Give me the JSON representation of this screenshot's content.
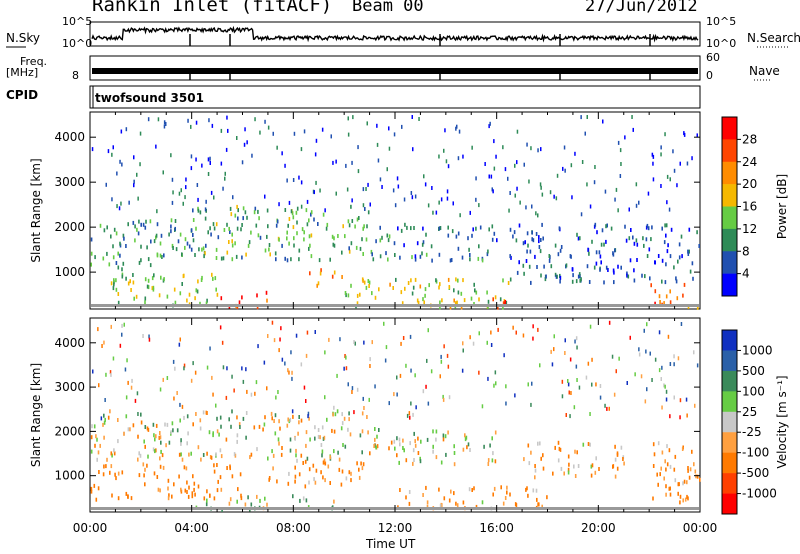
{
  "header": {
    "title": "Rankin Inlet (fitACF)",
    "beam": "Beam 00",
    "date": "27/Jun/2012"
  },
  "status_panel": {
    "nsky_label": "N.Sky",
    "nsky_ticks": [
      "10^5",
      "10^0"
    ],
    "nsearch_label": "N.Search",
    "freq_label": "Freq.",
    "freq_unit": "[MHz]",
    "freq_ticks": [
      "8"
    ],
    "nave_label": "Nave",
    "nave_ticks": [
      "60",
      "0"
    ],
    "cpid_label": "CPID",
    "cpid_value": "twofsound 3501"
  },
  "chart_data": [
    {
      "type": "heatmap",
      "ylabel": "Slant Range [km]",
      "xlabel": "Time UT",
      "xlim": [
        0,
        24
      ],
      "ylim": [
        180,
        4560
      ],
      "yticks": [
        1000,
        2000,
        3000,
        4000
      ],
      "xticks": [
        "00:00",
        "04:00",
        "08:00",
        "12:00",
        "16:00",
        "20:00",
        "00:00"
      ],
      "colorbar": {
        "label": "Power [dB]",
        "ticks": [
          "28",
          "24",
          "20",
          "16",
          "12",
          "8",
          "4"
        ],
        "colors": [
          "#ff0000",
          "#ff4500",
          "#ff8c00",
          "#f5b800",
          "#66cc44",
          "#2e8b57",
          "#2050b0",
          "#0000ff"
        ]
      },
      "regions": [
        {
          "t": [
            0.0,
            4.0
          ],
          "r": [
            1100,
            2200
          ],
          "power": 10
        },
        {
          "t": [
            4.0,
            11.0
          ],
          "r": [
            1300,
            2500
          ],
          "power": 12
        },
        {
          "t": [
            11.0,
            16.0
          ],
          "r": [
            1300,
            2100
          ],
          "power": 8
        },
        {
          "t": [
            16.5,
            24.0
          ],
          "r": [
            800,
            2100
          ],
          "power": 6
        },
        {
          "t": [
            5.0,
            7.0
          ],
          "r": [
            250,
            600
          ],
          "power": 28
        },
        {
          "t": [
            8.5,
            10.0
          ],
          "r": [
            700,
            1100
          ],
          "power": 22
        },
        {
          "t": [
            0.5,
            5.0
          ],
          "r": [
            300,
            1000
          ],
          "power": 14
        },
        {
          "t": [
            10.0,
            16.5
          ],
          "r": [
            250,
            900
          ],
          "power": 16
        },
        {
          "t": [
            15.5,
            16.5
          ],
          "r": [
            250,
            500
          ],
          "power": 26
        },
        {
          "t": [
            22.0,
            24.0
          ],
          "r": [
            250,
            800
          ],
          "power": 24
        }
      ]
    },
    {
      "type": "heatmap",
      "ylabel": "Slant Range [km]",
      "xlabel": "Time UT",
      "xlim": [
        0,
        24
      ],
      "ylim": [
        180,
        4560
      ],
      "yticks": [
        1000,
        2000,
        3000,
        4000
      ],
      "xticks": [
        "00:00",
        "04:00",
        "08:00",
        "12:00",
        "16:00",
        "20:00",
        "00:00"
      ],
      "colorbar": {
        "label": "Velocity [m s⁻¹]",
        "ticks": [
          "1000",
          "500",
          "100",
          "25",
          "-25",
          "-100",
          "-500",
          "-1000"
        ],
        "colors": [
          "#1030c0",
          "#2a60a8",
          "#3a8a5a",
          "#66cc44",
          "#c8c8c8",
          "#ffa040",
          "#ff7a00",
          "#ff4000",
          "#ff0000"
        ]
      },
      "regions": [
        {
          "t": [
            0.0,
            11.0
          ],
          "r": [
            1400,
            2500
          ],
          "velocity": 0
        },
        {
          "t": [
            11.0,
            16.0
          ],
          "r": [
            1300,
            2100
          ],
          "velocity": 0
        },
        {
          "t": [
            0.0,
            6.0
          ],
          "r": [
            500,
            1300
          ],
          "velocity": -200
        },
        {
          "t": [
            7.0,
            11.0
          ],
          "r": [
            800,
            1400
          ],
          "velocity": -150
        },
        {
          "t": [
            12.0,
            18.0
          ],
          "r": [
            300,
            800
          ],
          "velocity": -120
        },
        {
          "t": [
            17.0,
            21.0
          ],
          "r": [
            1000,
            1800
          ],
          "velocity": -100
        },
        {
          "t": [
            22.0,
            24.0
          ],
          "r": [
            400,
            1800
          ],
          "velocity": -150
        },
        {
          "t": [
            4.0,
            10.0
          ],
          "r": [
            250,
            600
          ],
          "velocity": 80
        }
      ]
    }
  ]
}
